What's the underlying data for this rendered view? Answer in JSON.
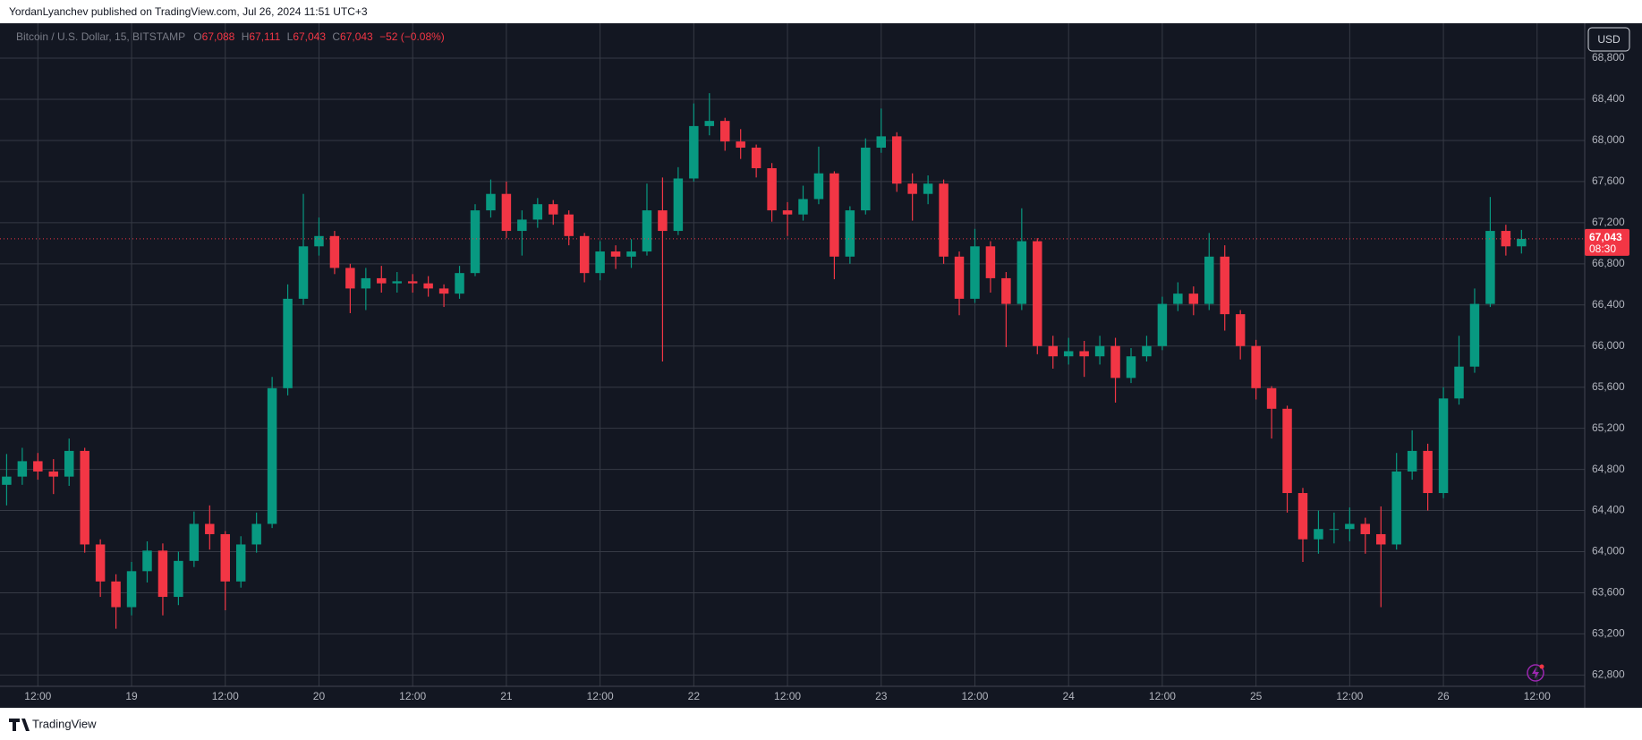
{
  "header": "YordanLyanchev published on TradingView.com, Jul 26, 2024 11:51 UTC+3",
  "footer": "TradingView",
  "chart_data": {
    "type": "candlestick",
    "legend": {
      "symbol": "Bitcoin / U.S. Dollar, 15, BITSTAMP",
      "open_label": "O",
      "open": "67,088",
      "high_label": "H",
      "high": "67,111",
      "low_label": "L",
      "low": "67,043",
      "close_label": "C",
      "close": "67,043",
      "change": "−52 (−0.08%)"
    },
    "currency": "USD",
    "last_price": {
      "value": 67043,
      "label": "67,043"
    },
    "countdown": "08:30",
    "up_color": "#089981",
    "down_color": "#f23645",
    "grid": true,
    "ylim": [
      62690,
      69140
    ],
    "yticks": [
      {
        "value": 62800,
        "label": "62,800"
      },
      {
        "value": 63200,
        "label": "63,200"
      },
      {
        "value": 63600,
        "label": "63,600"
      },
      {
        "value": 64000,
        "label": "64,000"
      },
      {
        "value": 64400,
        "label": "64,400"
      },
      {
        "value": 64800,
        "label": "64,800"
      },
      {
        "value": 65200,
        "label": "65,200"
      },
      {
        "value": 65600,
        "label": "65,600"
      },
      {
        "value": 66000,
        "label": "66,000"
      },
      {
        "value": 66400,
        "label": "66,400"
      },
      {
        "value": 66800,
        "label": "66,800"
      },
      {
        "value": 67200,
        "label": "67,200"
      },
      {
        "value": 67600,
        "label": "67,600"
      },
      {
        "value": 68000,
        "label": "68,000"
      },
      {
        "value": 68400,
        "label": "68,400"
      },
      {
        "value": 68800,
        "label": "68,800"
      }
    ],
    "xlim": [
      "2024-07-18T07:09",
      "2024-07-26T18:06"
    ],
    "xticks": [
      {
        "value": "2024-07-18T12:00",
        "label": "12:00"
      },
      {
        "value": "2024-07-19T00:00",
        "label": "19"
      },
      {
        "value": "2024-07-19T12:00",
        "label": "12:00"
      },
      {
        "value": "2024-07-20T00:00",
        "label": "20"
      },
      {
        "value": "2024-07-20T12:00",
        "label": "12:00"
      },
      {
        "value": "2024-07-21T00:00",
        "label": "21"
      },
      {
        "value": "2024-07-21T12:00",
        "label": "12:00"
      },
      {
        "value": "2024-07-22T00:00",
        "label": "22"
      },
      {
        "value": "2024-07-22T12:00",
        "label": "12:00"
      },
      {
        "value": "2024-07-23T00:00",
        "label": "23"
      },
      {
        "value": "2024-07-23T12:00",
        "label": "12:00"
      },
      {
        "value": "2024-07-24T00:00",
        "label": "24"
      },
      {
        "value": "2024-07-24T12:00",
        "label": "12:00"
      },
      {
        "value": "2024-07-25T00:00",
        "label": "25"
      },
      {
        "value": "2024-07-25T12:00",
        "label": "12:00"
      },
      {
        "value": "2024-07-26T00:00",
        "label": "26"
      },
      {
        "value": "2024-07-26T12:00",
        "label": "12:00"
      }
    ],
    "x": [
      "2024-07-18T08:00",
      "2024-07-18T10:00",
      "2024-07-18T12:00",
      "2024-07-18T14:00",
      "2024-07-18T16:00",
      "2024-07-18T18:00",
      "2024-07-18T20:00",
      "2024-07-18T22:00",
      "2024-07-19T00:00",
      "2024-07-19T02:00",
      "2024-07-19T04:00",
      "2024-07-19T06:00",
      "2024-07-19T08:00",
      "2024-07-19T10:00",
      "2024-07-19T12:00",
      "2024-07-19T14:00",
      "2024-07-19T16:00",
      "2024-07-19T18:00",
      "2024-07-19T20:00",
      "2024-07-19T22:00",
      "2024-07-20T00:00",
      "2024-07-20T02:00",
      "2024-07-20T04:00",
      "2024-07-20T06:00",
      "2024-07-20T08:00",
      "2024-07-20T10:00",
      "2024-07-20T12:00",
      "2024-07-20T14:00",
      "2024-07-20T16:00",
      "2024-07-20T18:00",
      "2024-07-20T20:00",
      "2024-07-20T22:00",
      "2024-07-21T00:00",
      "2024-07-21T02:00",
      "2024-07-21T04:00",
      "2024-07-21T06:00",
      "2024-07-21T08:00",
      "2024-07-21T10:00",
      "2024-07-21T12:00",
      "2024-07-21T14:00",
      "2024-07-21T16:00",
      "2024-07-21T18:00",
      "2024-07-21T20:00",
      "2024-07-21T22:00",
      "2024-07-22T00:00",
      "2024-07-22T02:00",
      "2024-07-22T04:00",
      "2024-07-22T06:00",
      "2024-07-22T08:00",
      "2024-07-22T10:00",
      "2024-07-22T12:00",
      "2024-07-22T14:00",
      "2024-07-22T16:00",
      "2024-07-22T18:00",
      "2024-07-22T20:00",
      "2024-07-22T22:00",
      "2024-07-23T00:00",
      "2024-07-23T02:00",
      "2024-07-23T04:00",
      "2024-07-23T06:00",
      "2024-07-23T08:00",
      "2024-07-23T10:00",
      "2024-07-23T12:00",
      "2024-07-23T14:00",
      "2024-07-23T16:00",
      "2024-07-23T18:00",
      "2024-07-23T20:00",
      "2024-07-23T22:00",
      "2024-07-24T00:00",
      "2024-07-24T02:00",
      "2024-07-24T04:00",
      "2024-07-24T06:00",
      "2024-07-24T08:00",
      "2024-07-24T10:00",
      "2024-07-24T12:00",
      "2024-07-24T14:00",
      "2024-07-24T16:00",
      "2024-07-24T18:00",
      "2024-07-24T20:00",
      "2024-07-24T22:00",
      "2024-07-25T00:00",
      "2024-07-25T02:00",
      "2024-07-25T04:00",
      "2024-07-25T06:00",
      "2024-07-25T08:00",
      "2024-07-25T10:00",
      "2024-07-25T12:00",
      "2024-07-25T14:00",
      "2024-07-25T16:00",
      "2024-07-25T18:00",
      "2024-07-25T20:00",
      "2024-07-25T22:00",
      "2024-07-26T00:00",
      "2024-07-26T02:00",
      "2024-07-26T04:00",
      "2024-07-26T06:00",
      "2024-07-26T08:00",
      "2024-07-26T10:00"
    ],
    "open": [
      64650,
      64730,
      64880,
      64780,
      64730,
      64980,
      64070,
      63710,
      63460,
      63810,
      64010,
      63560,
      63910,
      64270,
      64170,
      63710,
      64070,
      64270,
      65590,
      66460,
      66970,
      67070,
      66760,
      66560,
      66660,
      66610,
      66630,
      66610,
      66560,
      66510,
      66710,
      67320,
      67480,
      67120,
      67230,
      67380,
      67280,
      67070,
      66710,
      66920,
      66870,
      66920,
      67320,
      67120,
      67630,
      68140,
      68190,
      67990,
      67930,
      67730,
      67320,
      67280,
      67430,
      67680,
      66870,
      67320,
      67930,
      68040,
      67580,
      67480,
      67580,
      66870,
      66460,
      66970,
      66660,
      66410,
      67020,
      66000,
      65900,
      65950,
      65900,
      66000,
      65690,
      65900,
      66000,
      66410,
      66510,
      66410,
      66870,
      66310,
      66000,
      65590,
      65390,
      64570,
      64120,
      64220,
      64220,
      64270,
      64170,
      64070,
      64780,
      64980,
      64570,
      65490,
      65800,
      66410,
      67120,
      66970
    ],
    "high": [
      64950,
      65010,
      64960,
      64900,
      65100,
      65010,
      64120,
      63780,
      63900,
      64100,
      64080,
      64000,
      64390,
      64450,
      64200,
      64150,
      64380,
      65700,
      66600,
      67480,
      67250,
      67120,
      66800,
      66760,
      66780,
      66720,
      66700,
      66680,
      66600,
      66780,
      67380,
      67620,
      67600,
      67320,
      67440,
      67420,
      67320,
      67100,
      67020,
      66980,
      67040,
      67580,
      67640,
      67740,
      68360,
      68460,
      68220,
      68110,
      67960,
      67780,
      67400,
      67560,
      67940,
      67700,
      67360,
      68020,
      68310,
      68080,
      67680,
      67660,
      67620,
      66920,
      67140,
      67020,
      66720,
      67340,
      67050,
      66100,
      66080,
      66050,
      66100,
      66080,
      65980,
      66100,
      66480,
      66620,
      66580,
      67100,
      66980,
      66350,
      66060,
      65610,
      65420,
      64620,
      64400,
      64380,
      64430,
      64330,
      64440,
      64960,
      65180,
      65050,
      65600,
      66100,
      66560,
      67450,
      67180,
      67130
    ],
    "low": [
      64450,
      64650,
      64700,
      64560,
      64640,
      63990,
      63560,
      63250,
      63380,
      63700,
      63380,
      63480,
      63850,
      64020,
      63430,
      63650,
      63990,
      64230,
      65520,
      66400,
      66880,
      66700,
      66320,
      66350,
      66520,
      66520,
      66520,
      66480,
      66380,
      66460,
      66680,
      67250,
      67050,
      66880,
      67150,
      67180,
      66980,
      66620,
      66640,
      66750,
      66760,
      66880,
      65850,
      67080,
      67600,
      68050,
      67900,
      67820,
      67640,
      67210,
      67070,
      67220,
      67380,
      66650,
      66800,
      67280,
      67880,
      67500,
      67220,
      67380,
      66800,
      66300,
      66420,
      66520,
      65990,
      66350,
      65920,
      65780,
      65820,
      65700,
      65820,
      65450,
      65640,
      65850,
      65960,
      66340,
      66300,
      66350,
      66150,
      65870,
      65480,
      65100,
      64380,
      63900,
      63980,
      64080,
      64100,
      63980,
      63460,
      64020,
      64700,
      64400,
      64520,
      65430,
      65740,
      66380,
      66880,
      66900
    ],
    "close": [
      64730,
      64880,
      64780,
      64730,
      64980,
      64070,
      63710,
      63460,
      63810,
      64010,
      63560,
      63910,
      64270,
      64170,
      63710,
      64070,
      64270,
      65590,
      66460,
      66970,
      67070,
      66760,
      66560,
      66660,
      66610,
      66630,
      66610,
      66560,
      66510,
      66710,
      67320,
      67480,
      67120,
      67230,
      67380,
      67280,
      67070,
      66710,
      66920,
      66870,
      66920,
      67320,
      67120,
      67630,
      68140,
      68190,
      67990,
      67930,
      67730,
      67320,
      67280,
      67430,
      67680,
      66870,
      67320,
      67930,
      68040,
      67580,
      67480,
      67580,
      66870,
      66460,
      66970,
      66660,
      66410,
      67020,
      66000,
      65900,
      65950,
      65900,
      66000,
      65690,
      65900,
      66000,
      66410,
      66510,
      66410,
      66870,
      66310,
      66000,
      65590,
      65390,
      64570,
      64120,
      64220,
      64220,
      64270,
      64170,
      64070,
      64780,
      64980,
      64570,
      65490,
      65800,
      66410,
      67120,
      66970,
      67043
    ]
  }
}
